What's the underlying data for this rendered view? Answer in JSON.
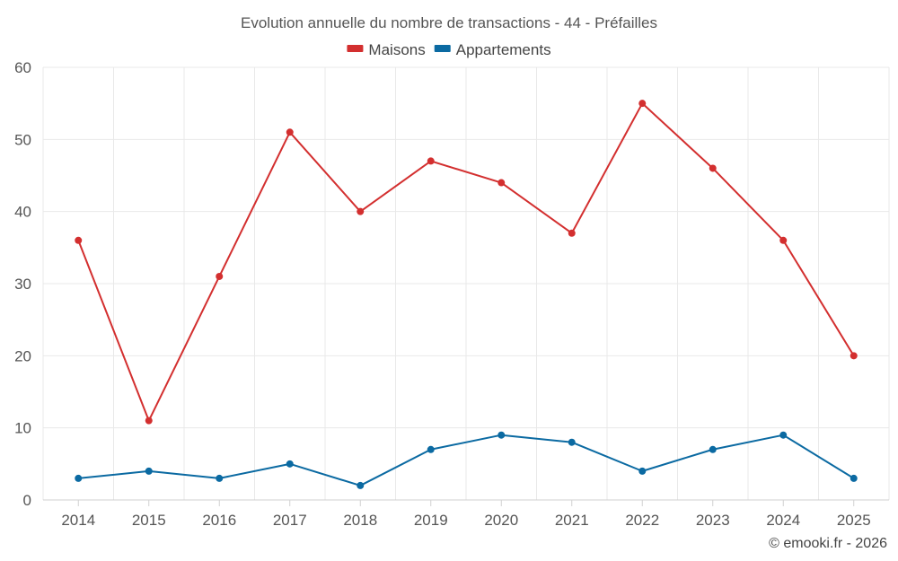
{
  "chart_data": {
    "type": "line",
    "title": "Evolution annuelle du nombre de transactions - 44 - Préfailles",
    "categories": [
      "2014",
      "2015",
      "2016",
      "2017",
      "2018",
      "2019",
      "2020",
      "2021",
      "2022",
      "2023",
      "2024",
      "2025"
    ],
    "series": [
      {
        "name": "Maisons",
        "color": "#d32f2f",
        "values": [
          36,
          11,
          31,
          51,
          40,
          47,
          44,
          37,
          55,
          46,
          36,
          20
        ]
      },
      {
        "name": "Appartements",
        "color": "#0b6aa2",
        "values": [
          3,
          4,
          3,
          5,
          2,
          7,
          9,
          8,
          4,
          7,
          9,
          3
        ]
      }
    ],
    "ylim": [
      0,
      60
    ],
    "yticks": [
      "0",
      "10",
      "20",
      "30",
      "40",
      "50",
      "60"
    ],
    "xlabel": "",
    "ylabel": "",
    "legend": "top-center",
    "grid": true
  },
  "credit": "© emooki.fr - 2026"
}
